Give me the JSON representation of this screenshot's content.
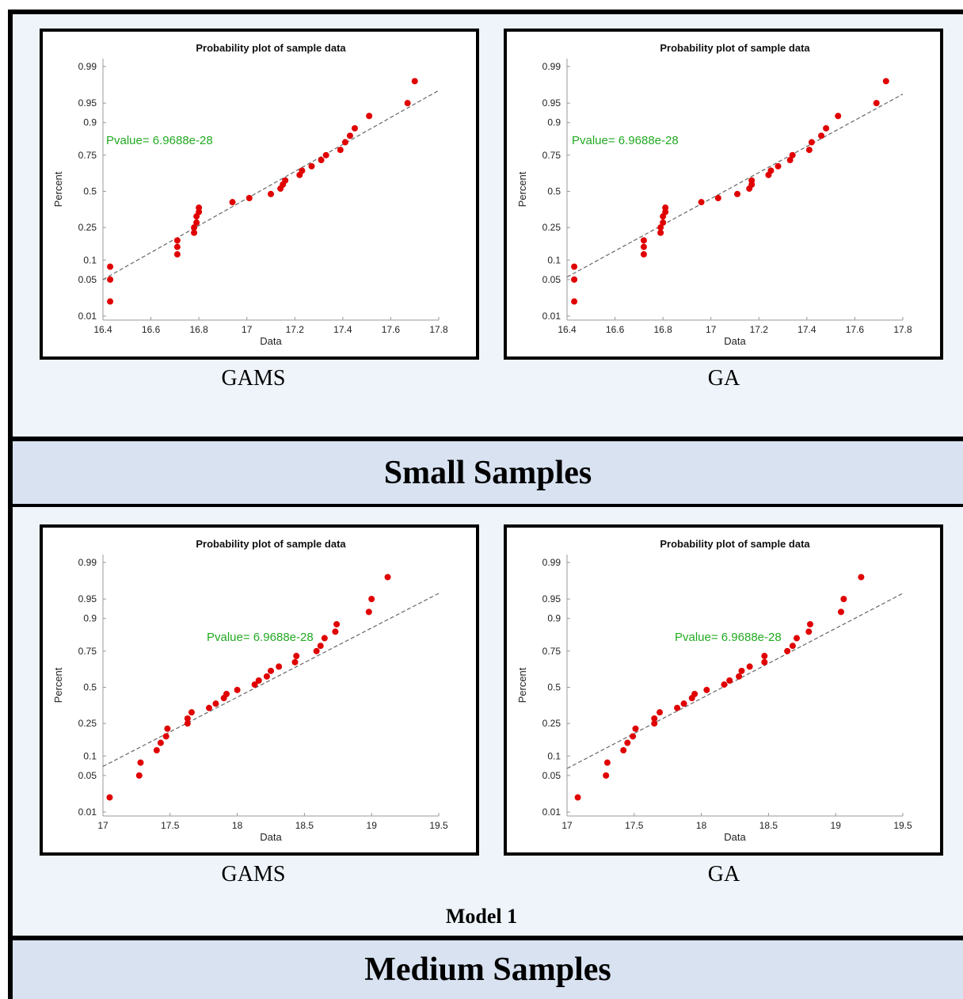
{
  "sections": [
    {
      "band_label": "Small Samples"
    },
    {
      "band_label": "Medium Samples",
      "model_label": "Model 1"
    }
  ],
  "colors": {
    "point": "#e00000",
    "fit_line": "#666666",
    "pvalue": "#22aa22",
    "band": "#d8e2f1",
    "background": "#eef4f9"
  },
  "chart_data": [
    {
      "type": "scatter",
      "title": "Probability plot of sample data",
      "caption": "GAMS",
      "xlabel": "Data",
      "ylabel": "Percent",
      "xlim": [
        16.4,
        17.8
      ],
      "xticks": [
        "16.4",
        "16.6",
        "16.8",
        "17",
        "17.2",
        "17.4",
        "17.6",
        "17.8"
      ],
      "yscale": "normal-probability",
      "yticks": [
        "0.01",
        "0.05",
        "0.1",
        "0.25",
        "0.5",
        "0.75",
        "0.9",
        "0.95",
        "0.99"
      ],
      "annotation": "Pvalue= 6.9688e-28",
      "fit_line": {
        "x": [
          16.4,
          17.8
        ],
        "y": [
          0.05,
          0.97
        ]
      },
      "series": [
        {
          "x": [
            16.43,
            16.43,
            16.43,
            16.71,
            16.71,
            16.71,
            16.78,
            16.78,
            16.79,
            16.79,
            16.8,
            16.8,
            16.94,
            17.01,
            17.1,
            17.14,
            17.15,
            17.16,
            17.22,
            17.23,
            17.27,
            17.31,
            17.33,
            17.39,
            17.41,
            17.43,
            17.45,
            17.51,
            17.67,
            17.7
          ],
          "y": [
            0.02,
            0.05,
            0.08,
            0.12,
            0.15,
            0.18,
            0.22,
            0.25,
            0.28,
            0.32,
            0.35,
            0.38,
            0.42,
            0.45,
            0.48,
            0.52,
            0.55,
            0.58,
            0.62,
            0.65,
            0.68,
            0.72,
            0.75,
            0.78,
            0.82,
            0.85,
            0.88,
            0.92,
            0.95,
            0.98
          ]
        }
      ]
    },
    {
      "type": "scatter",
      "title": "Probability plot of sample data",
      "caption": "GA",
      "xlabel": "Data",
      "ylabel": "Percent",
      "xlim": [
        16.4,
        17.8
      ],
      "xticks": [
        "16.4",
        "16.6",
        "16.8",
        "17",
        "17.2",
        "17.4",
        "17.6",
        "17.8"
      ],
      "yscale": "normal-probability",
      "yticks": [
        "0.01",
        "0.05",
        "0.1",
        "0.25",
        "0.5",
        "0.75",
        "0.9",
        "0.95",
        "0.99"
      ],
      "annotation": "Pvalue= 6.9688e-28",
      "fit_line": {
        "x": [
          16.4,
          17.8
        ],
        "y": [
          0.055,
          0.965
        ]
      },
      "series": [
        {
          "x": [
            16.43,
            16.43,
            16.43,
            16.72,
            16.72,
            16.72,
            16.79,
            16.79,
            16.8,
            16.8,
            16.81,
            16.81,
            16.96,
            17.03,
            17.11,
            17.16,
            17.17,
            17.17,
            17.24,
            17.25,
            17.28,
            17.33,
            17.34,
            17.41,
            17.42,
            17.46,
            17.48,
            17.53,
            17.69,
            17.73
          ],
          "y": [
            0.02,
            0.05,
            0.08,
            0.12,
            0.15,
            0.18,
            0.22,
            0.25,
            0.28,
            0.32,
            0.35,
            0.38,
            0.42,
            0.45,
            0.48,
            0.52,
            0.55,
            0.58,
            0.62,
            0.65,
            0.68,
            0.72,
            0.75,
            0.78,
            0.82,
            0.85,
            0.88,
            0.92,
            0.95,
            0.98
          ]
        }
      ]
    },
    {
      "type": "scatter",
      "title": "Probability plot of sample data",
      "caption": "GAMS",
      "xlabel": "Data",
      "ylabel": "Percent",
      "xlim": [
        17,
        19.5
      ],
      "xticks": [
        "17",
        "17.5",
        "18",
        "18.5",
        "19",
        "19.5"
      ],
      "yscale": "normal-probability",
      "yticks": [
        "0.01",
        "0.05",
        "0.1",
        "0.25",
        "0.5",
        "0.75",
        "0.9",
        "0.95",
        "0.99"
      ],
      "annotation": "Pvalue= 6.9688e-28",
      "fit_line": {
        "x": [
          17,
          19.5
        ],
        "y": [
          0.07,
          0.96
        ]
      },
      "series": [
        {
          "x": [
            17.05,
            17.27,
            17.28,
            17.4,
            17.43,
            17.47,
            17.48,
            17.63,
            17.63,
            17.66,
            17.79,
            17.84,
            17.9,
            17.92,
            18.0,
            18.13,
            18.16,
            18.22,
            18.25,
            18.31,
            18.43,
            18.44,
            18.59,
            18.62,
            18.65,
            18.73,
            18.74,
            18.98,
            19.0,
            19.12
          ],
          "y": [
            0.02,
            0.05,
            0.08,
            0.12,
            0.15,
            0.18,
            0.22,
            0.25,
            0.28,
            0.32,
            0.35,
            0.38,
            0.42,
            0.45,
            0.48,
            0.52,
            0.55,
            0.58,
            0.62,
            0.65,
            0.68,
            0.72,
            0.75,
            0.78,
            0.82,
            0.85,
            0.88,
            0.92,
            0.95,
            0.98
          ]
        }
      ]
    },
    {
      "type": "scatter",
      "title": "Probability plot of sample data",
      "caption": "GA",
      "xlabel": "Data",
      "ylabel": "Percent",
      "xlim": [
        17,
        19.5
      ],
      "xticks": [
        "17",
        "17.5",
        "18",
        "18.5",
        "19",
        "19.5"
      ],
      "yscale": "normal-probability",
      "yticks": [
        "0.01",
        "0.05",
        "0.1",
        "0.25",
        "0.5",
        "0.75",
        "0.9",
        "0.95",
        "0.99"
      ],
      "annotation": "Pvalue= 6.9688e-28",
      "fit_line": {
        "x": [
          17,
          19.5
        ],
        "y": [
          0.065,
          0.96
        ]
      },
      "series": [
        {
          "x": [
            17.08,
            17.29,
            17.3,
            17.42,
            17.45,
            17.49,
            17.51,
            17.65,
            17.65,
            17.69,
            17.82,
            17.87,
            17.93,
            17.95,
            18.04,
            18.17,
            18.21,
            18.28,
            18.3,
            18.36,
            18.47,
            18.47,
            18.64,
            18.68,
            18.71,
            18.8,
            18.81,
            19.04,
            19.06,
            19.19
          ],
          "y": [
            0.02,
            0.05,
            0.08,
            0.12,
            0.15,
            0.18,
            0.22,
            0.25,
            0.28,
            0.32,
            0.35,
            0.38,
            0.42,
            0.45,
            0.48,
            0.52,
            0.55,
            0.58,
            0.62,
            0.65,
            0.68,
            0.72,
            0.75,
            0.78,
            0.82,
            0.85,
            0.88,
            0.92,
            0.95,
            0.98
          ]
        }
      ]
    }
  ]
}
